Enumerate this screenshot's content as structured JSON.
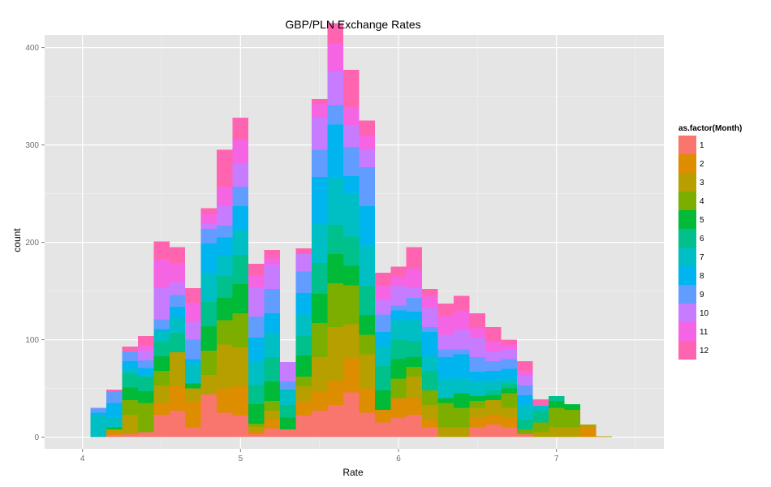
{
  "chart_data": {
    "type": "bar",
    "stacked": true,
    "title": "GBP/PLN Exchange Rates",
    "xlabel": "Rate",
    "ylabel": "count",
    "xlim": [
      3.76,
      7.68
    ],
    "ylim": [
      -12,
      413
    ],
    "x_ticks": [
      4,
      5,
      6,
      7
    ],
    "y_ticks": [
      0,
      100,
      200,
      300,
      400
    ],
    "grid": true,
    "legend": {
      "title": "as.factor(Month)",
      "position": "right"
    },
    "colors": [
      "#F8766D",
      "#DE8C00",
      "#B79F00",
      "#7CAE00",
      "#00BA38",
      "#00C08B",
      "#00BFC4",
      "#00B4F0",
      "#619CFF",
      "#C77CFF",
      "#F564E3",
      "#FF64B0"
    ],
    "bin_width": 0.1,
    "bins": [
      {
        "x": 4.1,
        "counts": [
          0,
          0,
          0,
          0,
          0,
          0,
          23,
          2,
          5,
          0,
          0,
          0
        ]
      },
      {
        "x": 4.2,
        "counts": [
          2,
          3,
          3,
          0,
          2,
          0,
          10,
          15,
          12,
          0,
          0,
          2
        ]
      },
      {
        "x": 4.3,
        "counts": [
          3,
          0,
          20,
          15,
          13,
          14,
          5,
          8,
          10,
          0,
          0,
          5
        ]
      },
      {
        "x": 4.4,
        "counts": [
          5,
          0,
          0,
          30,
          12,
          15,
          2,
          7,
          8,
          10,
          5,
          10
        ]
      },
      {
        "x": 4.5,
        "counts": [
          23,
          12,
          18,
          15,
          15,
          15,
          10,
          3,
          10,
          32,
          30,
          18
        ]
      },
      {
        "x": 4.6,
        "counts": [
          27,
          25,
          35,
          0,
          0,
          20,
          15,
          12,
          12,
          13,
          20,
          16
        ]
      },
      {
        "x": 4.7,
        "counts": [
          10,
          27,
          13,
          0,
          5,
          0,
          20,
          5,
          20,
          18,
          20,
          15
        ]
      },
      {
        "x": 4.8,
        "counts": [
          44,
          0,
          20,
          25,
          25,
          25,
          30,
          30,
          15,
          5,
          10,
          6
        ]
      },
      {
        "x": 4.9,
        "counts": [
          25,
          25,
          45,
          25,
          23,
          22,
          22,
          18,
          12,
          20,
          20,
          38
        ]
      },
      {
        "x": 5.0,
        "counts": [
          22,
          30,
          40,
          35,
          30,
          30,
          25,
          25,
          20,
          24,
          24,
          23
        ]
      },
      {
        "x": 5.1,
        "counts": [
          3,
          3,
          5,
          3,
          20,
          20,
          24,
          24,
          22,
          30,
          12,
          12
        ]
      },
      {
        "x": 5.2,
        "counts": [
          9,
          10,
          8,
          10,
          20,
          25,
          25,
          20,
          25,
          25,
          7,
          8
        ]
      },
      {
        "x": 5.3,
        "counts": [
          8,
          0,
          0,
          0,
          12,
          13,
          16,
          0,
          8,
          20,
          0,
          0
        ]
      },
      {
        "x": 5.4,
        "counts": [
          22,
          15,
          15,
          10,
          22,
          20,
          22,
          22,
          22,
          18,
          0,
          6
        ]
      },
      {
        "x": 5.5,
        "counts": [
          27,
          20,
          35,
          35,
          30,
          32,
          40,
          48,
          28,
          33,
          14,
          5
        ]
      },
      {
        "x": 5.6,
        "counts": [
          33,
          25,
          55,
          45,
          30,
          30,
          48,
          55,
          20,
          35,
          28,
          21
        ]
      },
      {
        "x": 5.7,
        "counts": [
          46,
          35,
          35,
          40,
          20,
          30,
          44,
          18,
          30,
          22,
          19,
          38
        ]
      },
      {
        "x": 5.8,
        "counts": [
          25,
          25,
          35,
          20,
          20,
          30,
          42,
          40,
          40,
          18,
          15,
          15
        ]
      },
      {
        "x": 5.9,
        "counts": [
          15,
          13,
          0,
          0,
          20,
          25,
          20,
          15,
          18,
          15,
          15,
          13
        ]
      },
      {
        "x": 6.0,
        "counts": [
          20,
          20,
          0,
          20,
          20,
          20,
          20,
          10,
          5,
          20,
          10,
          10
        ]
      },
      {
        "x": 6.1,
        "counts": [
          23,
          17,
          22,
          10,
          10,
          17,
          21,
          9,
          14,
          10,
          20,
          22
        ]
      },
      {
        "x": 6.2,
        "counts": [
          10,
          8,
          15,
          15,
          0,
          20,
          15,
          25,
          5,
          20,
          12,
          7
        ]
      },
      {
        "x": 6.3,
        "counts": [
          0,
          0,
          10,
          25,
          5,
          0,
          20,
          22,
          8,
          15,
          20,
          12
        ]
      },
      {
        "x": 6.4,
        "counts": [
          0,
          0,
          10,
          20,
          15,
          0,
          15,
          25,
          5,
          20,
          20,
          15
        ]
      },
      {
        "x": 6.5,
        "counts": [
          10,
          10,
          10,
          7,
          5,
          0,
          15,
          10,
          15,
          20,
          10,
          15
        ]
      },
      {
        "x": 6.6,
        "counts": [
          13,
          10,
          15,
          0,
          5,
          5,
          10,
          10,
          10,
          10,
          10,
          15
        ]
      },
      {
        "x": 6.7,
        "counts": [
          10,
          10,
          10,
          15,
          5,
          5,
          5,
          10,
          10,
          10,
          5,
          5
        ]
      },
      {
        "x": 6.8,
        "counts": [
          3,
          0,
          0,
          5,
          0,
          10,
          15,
          10,
          10,
          10,
          5,
          10
        ]
      },
      {
        "x": 6.9,
        "counts": [
          0,
          0,
          5,
          10,
          0,
          12,
          5,
          0,
          0,
          0,
          0,
          7
        ]
      },
      {
        "x": 7.0,
        "counts": [
          0,
          0,
          10,
          20,
          7,
          5,
          0,
          0,
          0,
          0,
          0,
          0
        ]
      },
      {
        "x": 7.1,
        "counts": [
          0,
          0,
          10,
          18,
          6,
          0,
          0,
          0,
          0,
          0,
          0,
          0
        ]
      },
      {
        "x": 7.2,
        "counts": [
          0,
          10,
          3,
          0,
          0,
          0,
          0,
          0,
          0,
          0,
          0,
          0
        ]
      },
      {
        "x": 7.3,
        "counts": [
          0,
          0,
          1,
          0,
          0,
          0,
          0,
          0,
          0,
          0,
          0,
          0
        ]
      }
    ],
    "legend_labels": [
      "1",
      "2",
      "3",
      "4",
      "5",
      "6",
      "7",
      "8",
      "9",
      "10",
      "11",
      "12"
    ]
  }
}
